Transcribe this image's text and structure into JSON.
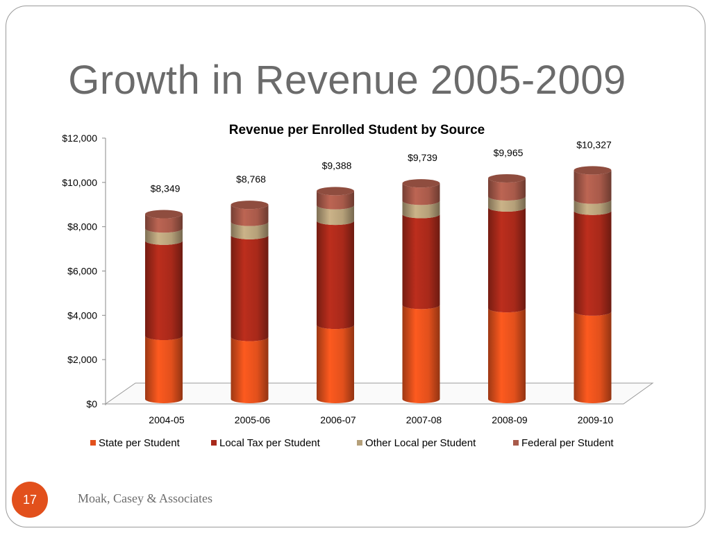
{
  "slide": {
    "title": "Growth in Revenue 2005-2009",
    "page_number": "17",
    "footer": "Moak, Casey & Associates"
  },
  "colors": {
    "state": "#e2501c",
    "local_tax": "#a8291a",
    "other_local": "#b5a079",
    "federal": "#a85a4a",
    "page_badge": "#e2501c"
  },
  "chart_data": {
    "type": "bar",
    "stacked": true,
    "style": "3d-cylinder",
    "title": "Revenue per Enrolled Student by Source",
    "categories": [
      "2004-05",
      "2005-06",
      "2006-07",
      "2007-08",
      "2008-09",
      "2009-10"
    ],
    "series": [
      {
        "name": "State per Student",
        "key": "state",
        "values": [
          2850,
          2800,
          3350,
          4250,
          4100,
          3950
        ]
      },
      {
        "name": "Local Tax per Student",
        "key": "local_tax",
        "values": [
          4300,
          4600,
          4700,
          4100,
          4550,
          4550
        ]
      },
      {
        "name": "Other Local per Student",
        "key": "other_local",
        "values": [
          550,
          600,
          700,
          600,
          500,
          500
        ]
      },
      {
        "name": "Federal per Student",
        "key": "federal",
        "values": [
          649,
          768,
          638,
          789,
          815,
          1327
        ]
      }
    ],
    "totals": [
      8349,
      8768,
      9388,
      9739,
      9965,
      10327
    ],
    "total_labels": [
      "$8,349",
      "$8,768",
      "$9,388",
      "$9,739",
      "$9,965",
      "$10,327"
    ],
    "y_ticks": [
      "$0",
      "$2,000",
      "$4,000",
      "$6,000",
      "$8,000",
      "$10,000",
      "$12,000"
    ],
    "ylim": [
      0,
      12000
    ],
    "ystep": 2000,
    "grid": false,
    "legend": "bottom"
  }
}
